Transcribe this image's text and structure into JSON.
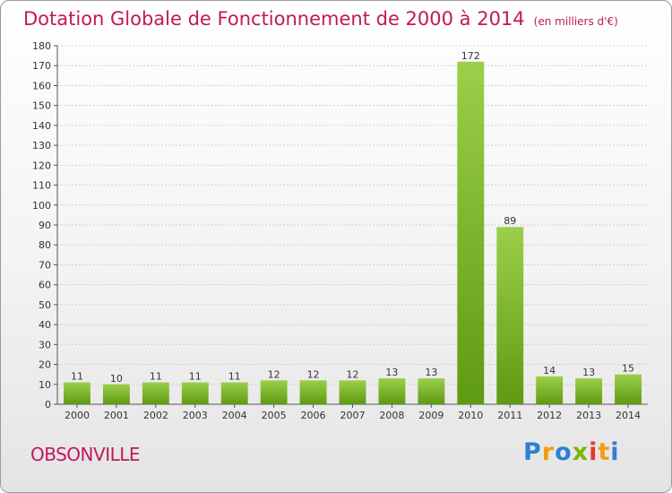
{
  "title": "Dotation Globale de Fonctionnement de 2000 à 2014",
  "subtitle": "(en milliers d'€)",
  "commune": "OBSONVILLE",
  "brand": {
    "letters": [
      "P",
      "r",
      "o",
      "x",
      "i",
      "t",
      "i"
    ],
    "colors": [
      "#2e7fd6",
      "#f39c12",
      "#2e7fd6",
      "#7ab800",
      "#e53935",
      "#f39c12",
      "#2e7fd6"
    ]
  },
  "colors": {
    "bar_light": "#9ccf4a",
    "bar_dark": "#5e9a12",
    "title": "#c2185b",
    "grid": "#d0d0d0"
  },
  "chart_data": {
    "type": "bar",
    "categories": [
      "2000",
      "2001",
      "2002",
      "2003",
      "2004",
      "2005",
      "2006",
      "2007",
      "2008",
      "2009",
      "2010",
      "2011",
      "2012",
      "2013",
      "2014"
    ],
    "values": [
      11,
      10,
      11,
      11,
      11,
      12,
      12,
      12,
      13,
      13,
      172,
      89,
      14,
      13,
      15
    ],
    "ylim": [
      0,
      180
    ],
    "yticks": [
      0,
      10,
      20,
      30,
      40,
      50,
      60,
      70,
      80,
      90,
      100,
      110,
      120,
      130,
      140,
      150,
      160,
      170,
      180
    ],
    "grid": true
  }
}
